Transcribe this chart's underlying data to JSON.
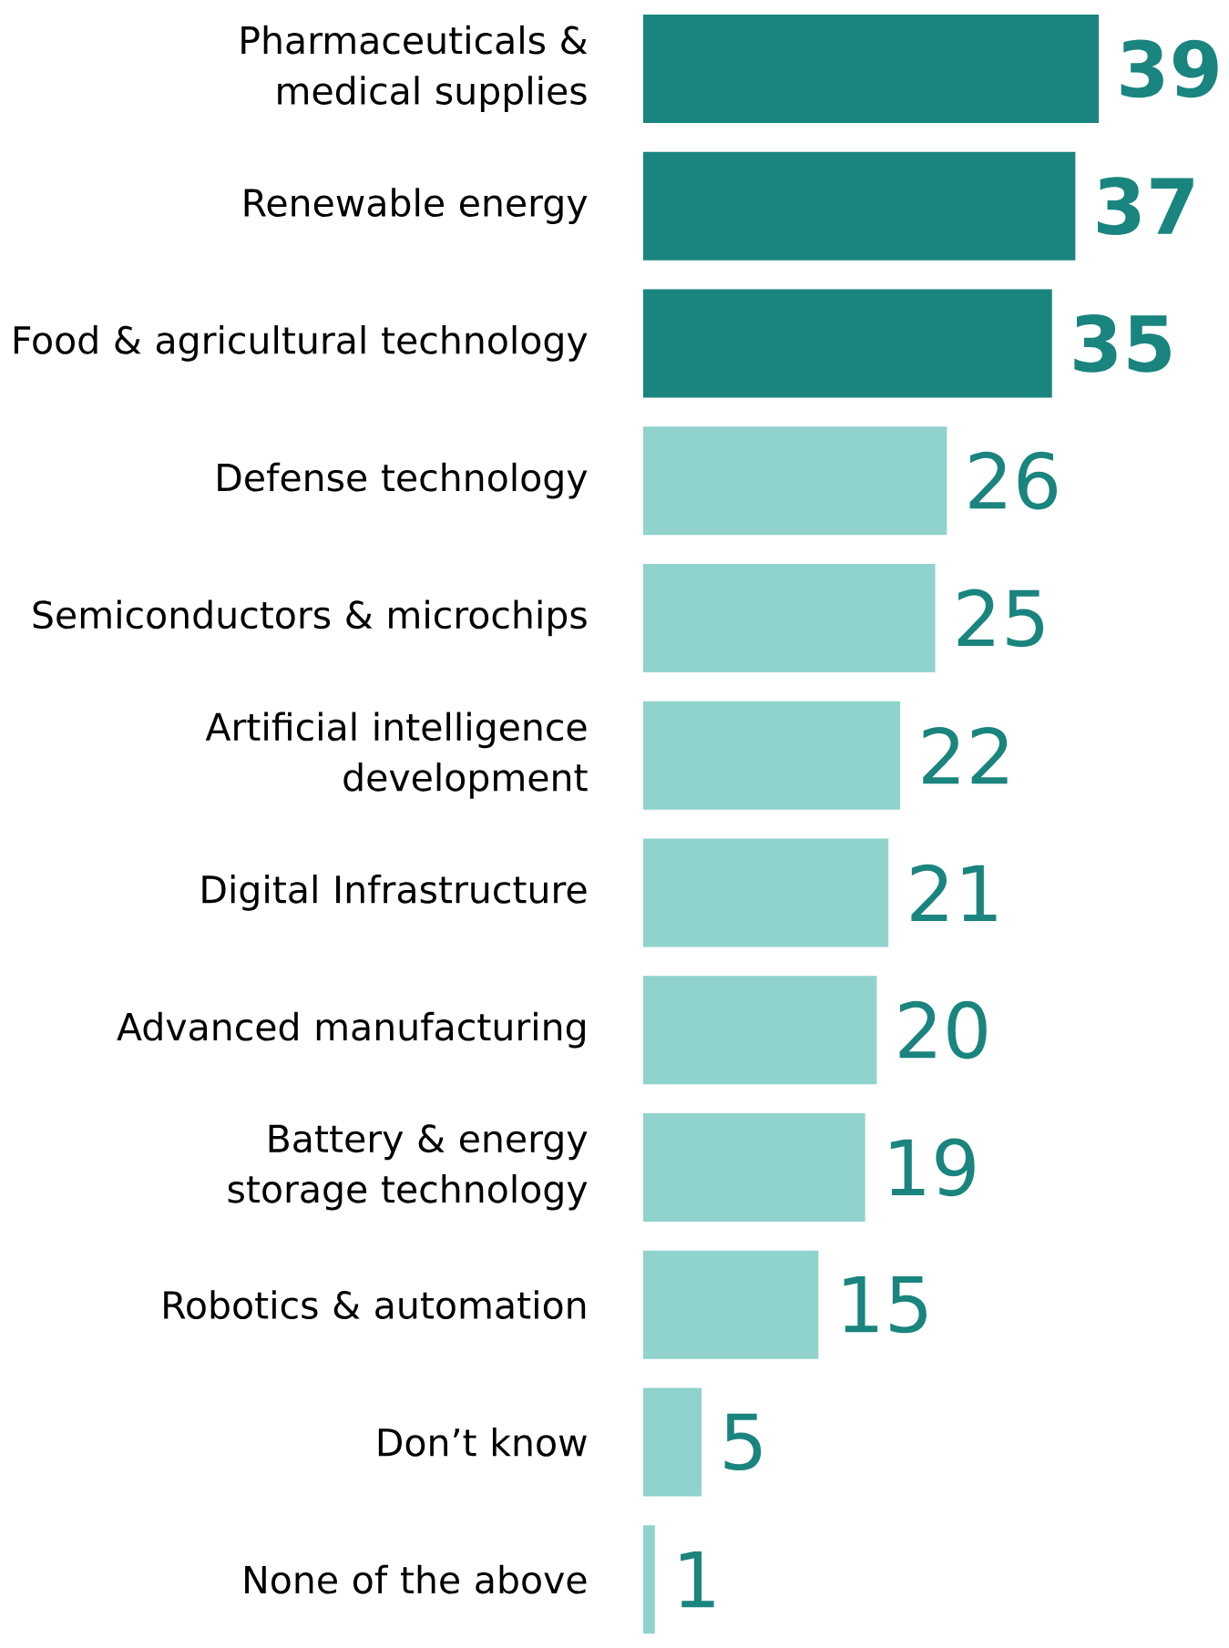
{
  "chart_data": {
    "type": "bar",
    "orientation": "horizontal",
    "data_labels": true,
    "categories": [
      "Pharmaceuticals & medical supplies",
      "Renewable energy",
      "Food & agricultural technology",
      "Defense technology",
      "Semiconductors & microchips",
      "Artificial intelligence development",
      "Digital Infrastructure",
      "Advanced manufacturing",
      "Battery & energy storage technology",
      "Robotics & automation",
      "Don’t know",
      "None of the above"
    ],
    "values": [
      39,
      37,
      35,
      26,
      25,
      22,
      21,
      20,
      19,
      15,
      5,
      1
    ],
    "colors": [
      "#1a847e",
      "#1a847e",
      "#1a847e",
      "#8fd3cc",
      "#8fd3cc",
      "#8fd3cc",
      "#8fd3cc",
      "#8fd3cc",
      "#8fd3cc",
      "#8fd3cc",
      "#8fd3cc",
      "#8fd3cc"
    ]
  }
}
